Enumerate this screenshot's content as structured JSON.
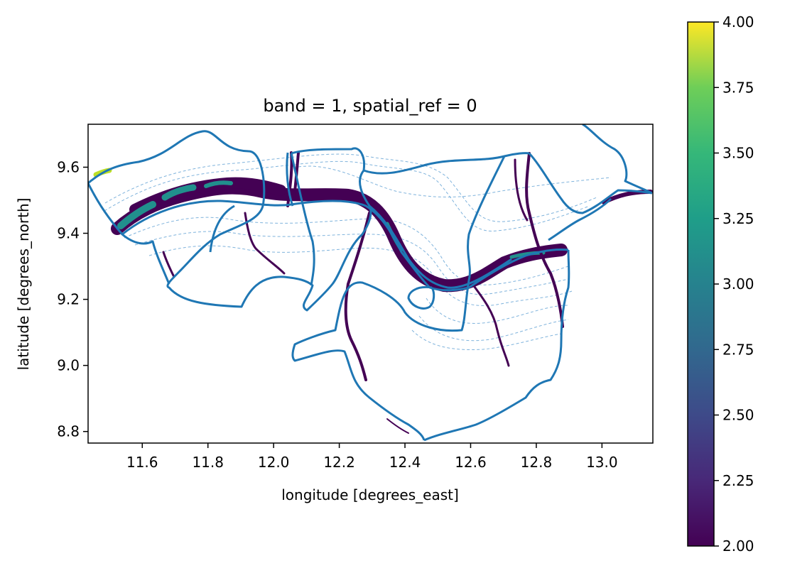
{
  "chart_data": {
    "type": "heatmap",
    "title": "band = 1, spatial_ref = 0",
    "xlabel": "longitude [degrees_east]",
    "ylabel": "latitude [degrees_north]",
    "xlim": [
      11.435,
      13.155
    ],
    "ylim": [
      8.765,
      9.73
    ],
    "xticks": [
      "11.6",
      "11.8",
      "12.0",
      "12.2",
      "12.4",
      "12.6",
      "12.8",
      "13.0"
    ],
    "yticks": [
      "8.8",
      "9.0",
      "9.2",
      "9.4",
      "9.6"
    ],
    "colorbar": {
      "colormap": "viridis",
      "range": [
        2.0,
        4.0
      ],
      "ticks": [
        "2.00",
        "2.25",
        "2.50",
        "2.75",
        "3.00",
        "3.25",
        "3.50",
        "3.75",
        "4.00"
      ]
    },
    "colors": {
      "boundary": "#1f77b4",
      "contour": "#7fb3dc",
      "water_low": "#440154",
      "water_mid": "#21908d",
      "water_high": "#bddf26"
    }
  }
}
